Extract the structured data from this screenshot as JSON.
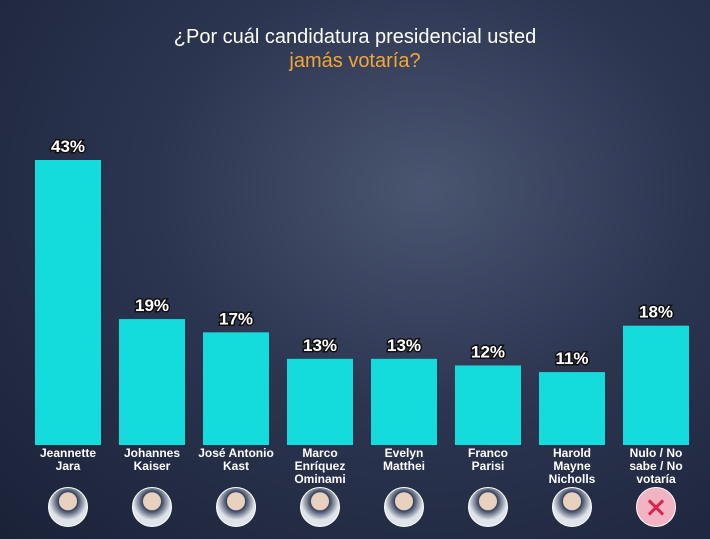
{
  "chart_data": {
    "type": "bar",
    "title": "¿Por cuál candidatura presidencial usted",
    "subtitle": "jamás votaría?",
    "categories": [
      "Jeannette Jara",
      "Johannes Kaiser",
      "José Antonio Kast",
      "Marco Enríquez Ominami",
      "Evelyn Matthei",
      "Franco Parisi",
      "Harold Mayne Nicholls",
      "Nulo / No sabe / No votaría"
    ],
    "values": [
      43,
      19,
      17,
      13,
      13,
      12,
      11,
      18
    ],
    "value_labels": [
      "43%",
      "19%",
      "17%",
      "13%",
      "13%",
      "12%",
      "11%",
      "18%"
    ],
    "color": "#14dcdc"
  }
}
